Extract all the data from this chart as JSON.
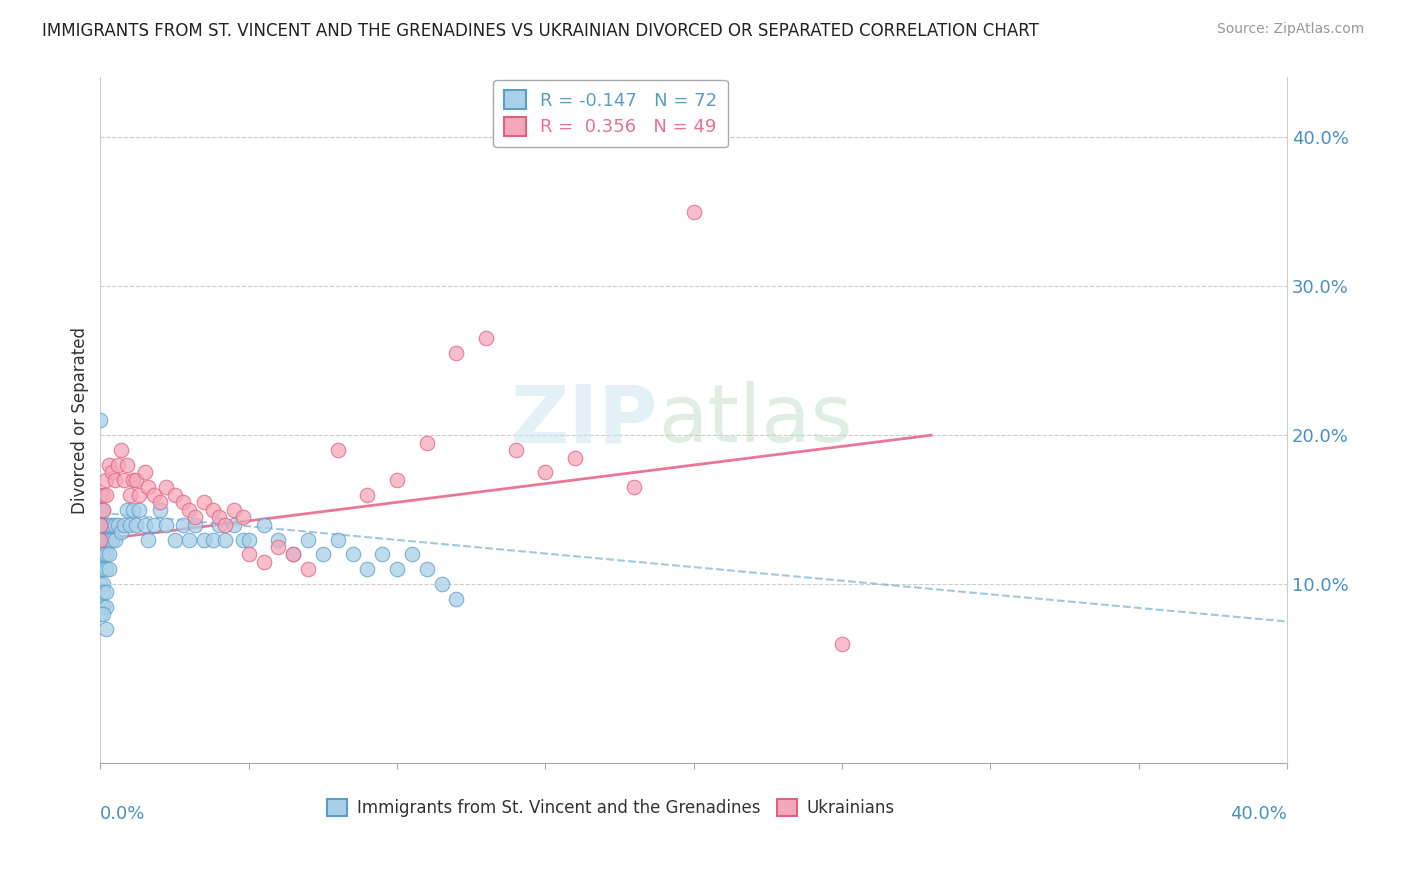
{
  "title": "IMMIGRANTS FROM ST. VINCENT AND THE GRENADINES VS UKRAINIAN DIVORCED OR SEPARATED CORRELATION CHART",
  "source": "Source: ZipAtlas.com",
  "ylabel": "Divorced or Separated",
  "ylabel_right_ticks": [
    "10.0%",
    "20.0%",
    "30.0%",
    "40.0%"
  ],
  "ylabel_right_vals": [
    0.1,
    0.2,
    0.3,
    0.4
  ],
  "xlim": [
    0.0,
    0.4
  ],
  "ylim": [
    -0.02,
    0.44
  ],
  "legend_blue_r": "-0.147",
  "legend_blue_n": "72",
  "legend_pink_r": "0.356",
  "legend_pink_n": "49",
  "blue_face_color": "#a8d0e8",
  "pink_face_color": "#f4a7b9",
  "blue_edge_color": "#5b9dc9",
  "pink_edge_color": "#e06080",
  "blue_trend_color": "#7ab0d0",
  "pink_trend_color": "#e87090",
  "blue_x": [
    0.0,
    0.0,
    0.0,
    0.0,
    0.0,
    0.0,
    0.0,
    0.0,
    0.001,
    0.001,
    0.001,
    0.001,
    0.001,
    0.001,
    0.001,
    0.001,
    0.002,
    0.002,
    0.002,
    0.002,
    0.002,
    0.002,
    0.003,
    0.003,
    0.003,
    0.003,
    0.004,
    0.004,
    0.005,
    0.005,
    0.006,
    0.007,
    0.008,
    0.009,
    0.01,
    0.011,
    0.012,
    0.013,
    0.015,
    0.016,
    0.018,
    0.02,
    0.022,
    0.025,
    0.028,
    0.03,
    0.032,
    0.035,
    0.038,
    0.04,
    0.042,
    0.045,
    0.048,
    0.05,
    0.055,
    0.06,
    0.065,
    0.07,
    0.075,
    0.08,
    0.085,
    0.09,
    0.095,
    0.1,
    0.105,
    0.11,
    0.115,
    0.12,
    0.0,
    0.0,
    0.001,
    0.002
  ],
  "blue_y": [
    0.13,
    0.14,
    0.13,
    0.12,
    0.11,
    0.1,
    0.15,
    0.16,
    0.15,
    0.14,
    0.13,
    0.12,
    0.11,
    0.1,
    0.095,
    0.085,
    0.14,
    0.13,
    0.12,
    0.11,
    0.095,
    0.085,
    0.14,
    0.13,
    0.12,
    0.11,
    0.14,
    0.13,
    0.14,
    0.13,
    0.14,
    0.135,
    0.14,
    0.15,
    0.14,
    0.15,
    0.14,
    0.15,
    0.14,
    0.13,
    0.14,
    0.15,
    0.14,
    0.13,
    0.14,
    0.13,
    0.14,
    0.13,
    0.13,
    0.14,
    0.13,
    0.14,
    0.13,
    0.13,
    0.14,
    0.13,
    0.12,
    0.13,
    0.12,
    0.13,
    0.12,
    0.11,
    0.12,
    0.11,
    0.12,
    0.11,
    0.1,
    0.09,
    0.21,
    0.08,
    0.08,
    0.07
  ],
  "pink_x": [
    0.0,
    0.0,
    0.001,
    0.001,
    0.002,
    0.002,
    0.003,
    0.004,
    0.005,
    0.006,
    0.007,
    0.008,
    0.009,
    0.01,
    0.011,
    0.012,
    0.013,
    0.015,
    0.016,
    0.018,
    0.02,
    0.022,
    0.025,
    0.028,
    0.03,
    0.032,
    0.035,
    0.038,
    0.04,
    0.042,
    0.045,
    0.048,
    0.05,
    0.055,
    0.06,
    0.065,
    0.07,
    0.08,
    0.09,
    0.1,
    0.11,
    0.12,
    0.13,
    0.14,
    0.15,
    0.16,
    0.18,
    0.2,
    0.25
  ],
  "pink_y": [
    0.14,
    0.13,
    0.16,
    0.15,
    0.17,
    0.16,
    0.18,
    0.175,
    0.17,
    0.18,
    0.19,
    0.17,
    0.18,
    0.16,
    0.17,
    0.17,
    0.16,
    0.175,
    0.165,
    0.16,
    0.155,
    0.165,
    0.16,
    0.155,
    0.15,
    0.145,
    0.155,
    0.15,
    0.145,
    0.14,
    0.15,
    0.145,
    0.12,
    0.115,
    0.125,
    0.12,
    0.11,
    0.19,
    0.16,
    0.17,
    0.195,
    0.255,
    0.265,
    0.19,
    0.175,
    0.185,
    0.165,
    0.35,
    0.06
  ],
  "blue_trend_x": [
    0.0,
    0.4
  ],
  "blue_trend_y": [
    0.148,
    0.075
  ],
  "pink_trend_x": [
    0.0,
    0.28
  ],
  "pink_trend_y": [
    0.13,
    0.2
  ]
}
